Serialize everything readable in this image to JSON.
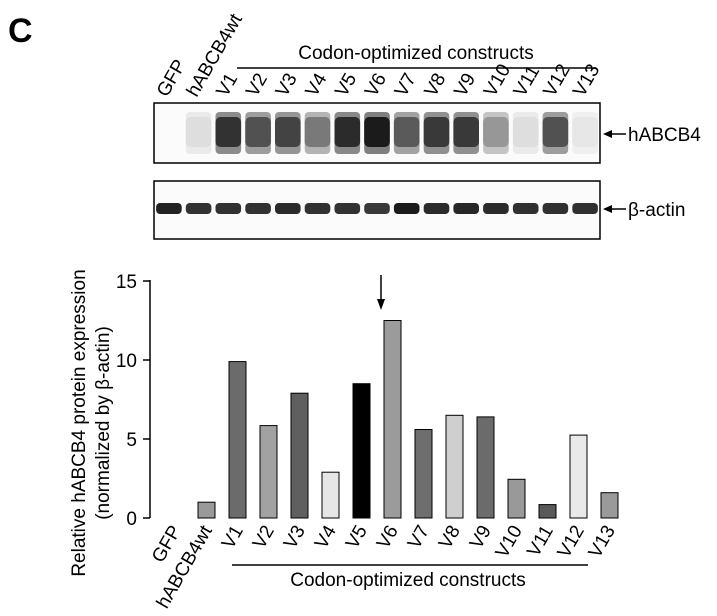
{
  "panel_label": "C",
  "lanes": [
    "GFP",
    "hABCB4wt",
    "V1",
    "V2",
    "V3",
    "V4",
    "V5",
    "V6",
    "V7",
    "V8",
    "V9",
    "V10",
    "V11",
    "V12",
    "V13"
  ],
  "group_label": "Codon-optimized constructs",
  "blot": {
    "band_labels": [
      "hABCB4",
      "β-actin"
    ],
    "habcb4_band_intensity": [
      0.0,
      0.12,
      0.85,
      0.72,
      0.78,
      0.55,
      0.88,
      0.95,
      0.68,
      0.82,
      0.82,
      0.42,
      0.12,
      0.72,
      0.08
    ],
    "actin_band_intensity": [
      0.92,
      0.85,
      0.85,
      0.85,
      0.88,
      0.85,
      0.85,
      0.82,
      0.95,
      0.88,
      0.9,
      0.88,
      0.86,
      0.86,
      0.86
    ]
  },
  "chart_data": {
    "type": "bar",
    "categories": [
      "GFP",
      "hABCB4wt",
      "V1",
      "V2",
      "V3",
      "V4",
      "V5",
      "V6",
      "V7",
      "V8",
      "V9",
      "V10",
      "V11",
      "V12",
      "V13"
    ],
    "values": [
      0,
      1.0,
      9.9,
      5.85,
      7.9,
      2.9,
      8.5,
      12.5,
      5.6,
      6.5,
      6.4,
      2.45,
      0.85,
      5.25,
      1.6
    ],
    "bar_colors": [
      "#ffffff",
      "#9a9a9a",
      "#6b6b6b",
      "#a2a2a2",
      "#5f5f5f",
      "#e6e6e6",
      "#000000",
      "#9b9b9b",
      "#6e6e6e",
      "#cfcfcf",
      "#6b6b6b",
      "#999999",
      "#5a5a5a",
      "#e9e9e9",
      "#9a9a9a"
    ],
    "ylabel_line1": "Relative hABCB4 protein expression",
    "ylabel_line2": "(normalized by β-actin)",
    "xlabel": "Codon-optimized constructs",
    "ylim": [
      0,
      15
    ],
    "yticks": [
      0,
      5,
      10,
      15
    ],
    "annotation": "arrow marking V6"
  }
}
